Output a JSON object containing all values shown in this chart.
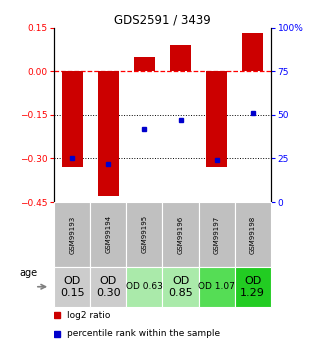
{
  "title": "GDS2591 / 3439",
  "samples": [
    "GSM99193",
    "GSM99194",
    "GSM99195",
    "GSM99196",
    "GSM99197",
    "GSM99198"
  ],
  "log2_ratio": [
    -0.33,
    -0.43,
    0.05,
    0.09,
    -0.33,
    0.13
  ],
  "percentile_rank": [
    25,
    22,
    42,
    47,
    24,
    51
  ],
  "ylim_left": [
    -0.45,
    0.15
  ],
  "ylim_right": [
    0,
    100
  ],
  "yticks_left": [
    0.15,
    0.0,
    -0.15,
    -0.3,
    -0.45
  ],
  "yticks_right": [
    100,
    75,
    50,
    25,
    0
  ],
  "bar_color": "#cc0000",
  "dot_color": "#0000cc",
  "od_values": [
    "OD\n0.15",
    "OD\n0.30",
    "OD 0.63",
    "OD\n0.85",
    "OD 1.07",
    "OD\n1.29"
  ],
  "od_bg_colors": [
    "#cccccc",
    "#cccccc",
    "#aaeaaa",
    "#aaeaaa",
    "#55dd55",
    "#22cc22"
  ],
  "od_fontsize": [
    8,
    8,
    6.5,
    8,
    6.5,
    8
  ],
  "sample_bg_color": "#c0c0c0",
  "legend_log2": "log2 ratio",
  "legend_pct": "percentile rank within the sample",
  "age_label": "age"
}
